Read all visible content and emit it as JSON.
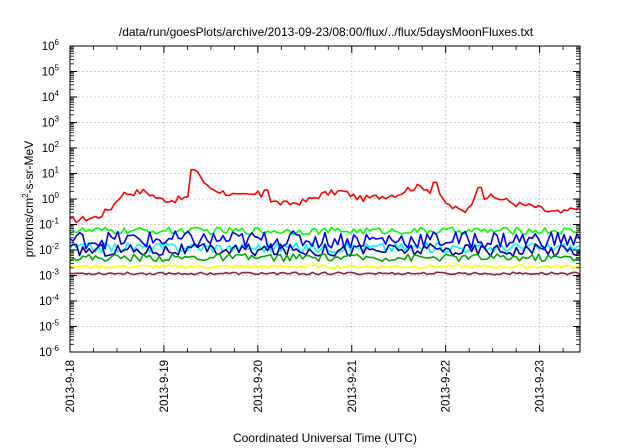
{
  "chart_data": {
    "type": "line",
    "title": "/data/run/goesPlots/archive/2013-09-23/08:00/flux/../flux/5daysMoonFluxes.txt",
    "xlabel": "Coordinated Universal Time (UTC)",
    "ylabel": {
      "prefix": "protons/cm",
      "sup": "2",
      "suffix": "-s-sr-MeV"
    },
    "yscale": "log",
    "ylim_exp": [
      -6,
      6
    ],
    "ytick_base": "10",
    "ytick_exponents": [
      "-6",
      "-5",
      "-4",
      "-3",
      "-2",
      "-1",
      "0",
      "1",
      "2",
      "3",
      "4",
      "5",
      "6"
    ],
    "xlim_days": [
      0,
      5.43
    ],
    "xtick_labels": [
      "2013-9-18",
      "2013-9-19",
      "2013-9-20",
      "2013-9-21",
      "2013-9-22",
      "2013-9-23"
    ],
    "grid": true,
    "series": [
      {
        "color": "#ff0000",
        "base": [
          [
            0,
            -0.85
          ],
          [
            0.3,
            -0.7
          ],
          [
            0.45,
            -0.3
          ],
          [
            0.55,
            0.2
          ],
          [
            0.8,
            0.3
          ],
          [
            0.95,
            0.0
          ],
          [
            1.1,
            -0.05
          ],
          [
            1.3,
            0.1
          ],
          [
            1.35,
            1.15
          ],
          [
            1.45,
            0.5
          ],
          [
            1.6,
            0.3
          ],
          [
            1.8,
            0.1
          ],
          [
            2.0,
            0.2
          ],
          [
            2.15,
            -0.1
          ],
          [
            2.3,
            -0.2
          ],
          [
            2.5,
            -0.1
          ],
          [
            2.7,
            0.2
          ],
          [
            2.9,
            0.3
          ],
          [
            3.1,
            0.0
          ],
          [
            3.3,
            0.1
          ],
          [
            3.5,
            0.2
          ],
          [
            3.6,
            0.4
          ],
          [
            3.75,
            0.5
          ],
          [
            3.9,
            0.2
          ],
          [
            4.05,
            -0.3
          ],
          [
            4.2,
            -0.5
          ],
          [
            4.3,
            0.0
          ],
          [
            4.45,
            0.1
          ],
          [
            4.6,
            0.0
          ],
          [
            4.75,
            -0.2
          ],
          [
            4.95,
            -0.3
          ],
          [
            5.1,
            -0.5
          ],
          [
            5.25,
            -0.55
          ],
          [
            5.43,
            -0.25
          ]
        ],
        "noise": 0.12,
        "spikes": [
          [
            1.32,
            1.15
          ],
          [
            3.87,
            0.65
          ],
          [
            4.35,
            0.45
          ],
          [
            2.08,
            0.35
          ]
        ]
      },
      {
        "color": "#00ff00",
        "base": [
          [
            0,
            -1.25
          ],
          [
            5.43,
            -1.25
          ]
        ],
        "noise": 0.14,
        "spikes": []
      },
      {
        "color": "#00ffff",
        "base": [
          [
            0,
            -1.9
          ],
          [
            5.43,
            -1.9
          ]
        ],
        "noise": 0.2,
        "spikes": []
      },
      {
        "color": "#0000ff",
        "base": [
          [
            0,
            -1.6
          ],
          [
            5.43,
            -1.6
          ]
        ],
        "noise": 0.35,
        "spikes": []
      },
      {
        "color": "#0000aa",
        "base": [
          [
            0,
            -2.0
          ],
          [
            5.43,
            -2.0
          ]
        ],
        "noise": 0.25,
        "spikes": []
      },
      {
        "color": "#00aa00",
        "base": [
          [
            0,
            -2.3
          ],
          [
            5.43,
            -2.3
          ]
        ],
        "noise": 0.15,
        "spikes": []
      },
      {
        "color": "#ffff00",
        "base": [
          [
            0,
            -2.65
          ],
          [
            5.43,
            -2.65
          ]
        ],
        "noise": 0.07,
        "spikes": []
      },
      {
        "color": "#8b2252",
        "base": [
          [
            0,
            -2.92
          ],
          [
            5.43,
            -2.92
          ]
        ],
        "noise": 0.05,
        "spikes": []
      }
    ]
  }
}
